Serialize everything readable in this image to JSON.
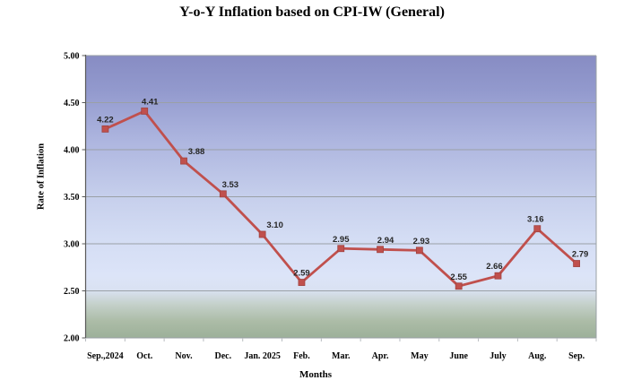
{
  "page": {
    "background": "#ffffff"
  },
  "chart_data": {
    "type": "line",
    "title": "Y-o-Y Inflation based on CPI-IW (General)",
    "xlabel": "Months",
    "ylabel": "Rate of Inflation",
    "categories": [
      "Sep.,2024",
      "Oct.",
      "Nov.",
      "Dec.",
      "Jan. 2025",
      "Feb.",
      "Mar.",
      "Apr.",
      "May",
      "June",
      "July",
      "Aug.",
      "Sep."
    ],
    "values": [
      4.22,
      4.41,
      3.88,
      3.53,
      3.1,
      2.59,
      2.95,
      2.94,
      2.93,
      2.55,
      2.66,
      3.16,
      2.79
    ],
    "data_label_decimals": 2,
    "label_dx": [
      0,
      6,
      14,
      8,
      14,
      0,
      0,
      6,
      2,
      0,
      -4,
      -2,
      4
    ],
    "ylim": [
      2.0,
      5.0
    ],
    "y_tick_step": 0.5,
    "grid": true,
    "legend_position": "none",
    "marker": "square",
    "colors": {
      "line": "#c0504d",
      "marker_fill": "#c0504d",
      "marker_stroke": "#a0423f",
      "data_label": "#262626",
      "axis_text": "#000000",
      "gridline": "#9aa0a6",
      "axis_line": "#595959",
      "x_tick": "#b8bcc0"
    },
    "plot_gradient": [
      {
        "offset": 0.0,
        "color": "#878cc3"
      },
      {
        "offset": 0.12,
        "color": "#9299cd"
      },
      {
        "offset": 0.3,
        "color": "#adb5df"
      },
      {
        "offset": 0.5,
        "color": "#c6cfec"
      },
      {
        "offset": 0.65,
        "color": "#d4ddf4"
      },
      {
        "offset": 0.78,
        "color": "#dce4f8"
      },
      {
        "offset": 0.83,
        "color": "#dae2f2"
      },
      {
        "offset": 0.88,
        "color": "#c5d1cb"
      },
      {
        "offset": 0.94,
        "color": "#acbca7"
      },
      {
        "offset": 1.0,
        "color": "#9cb099"
      }
    ]
  }
}
